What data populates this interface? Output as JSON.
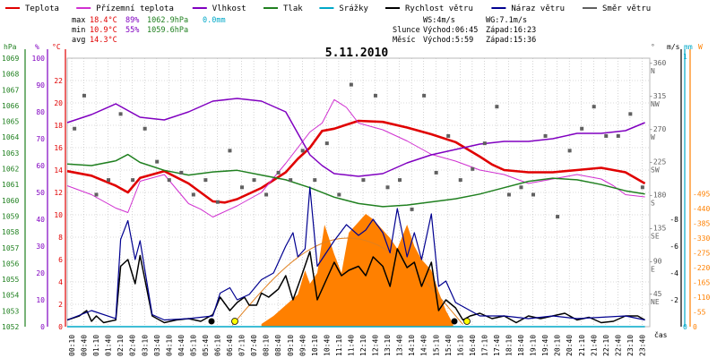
{
  "legend": [
    {
      "label": "Teplota",
      "color": "#e00000"
    },
    {
      "label": "Přízemní teplota",
      "color": "#d030d0"
    },
    {
      "label": "Vlhkost",
      "color": "#8000c0"
    },
    {
      "label": "Tlak",
      "color": "#208020"
    },
    {
      "label": "Srážky",
      "color": "#00a8c8"
    },
    {
      "label": "Rychlost větru",
      "color": "#000000"
    },
    {
      "label": "Náraz větru",
      "color": "#000090"
    },
    {
      "label": "Směr větru",
      "color": "#606060"
    }
  ],
  "stats": {
    "max_label": "max",
    "min_label": "min",
    "avg_label": "avg",
    "max_temp": "18.4°C",
    "max_hum": "89%",
    "max_press": "1062.9hPa",
    "max_rain": "0.0mm",
    "min_temp": "10.9°C",
    "min_hum": "55%",
    "min_press": "1059.6hPa",
    "avg_temp": "14.3°C"
  },
  "info": {
    "ws": "WS:4m/s",
    "wg": "WG:7.1m/s",
    "sun_label": "Slunce",
    "sun_rise": "Východ:06:45",
    "sun_set": "Západ:16:23",
    "moon_label": "Měsíc",
    "moon_rise": "Východ:5:59",
    "moon_set": "Západ:15:36"
  },
  "title": "5.11.2010",
  "axis_units": {
    "hpa": "hPa",
    "pct": "%",
    "deg": "°C",
    "deg2": "°",
    "ms": "m/s",
    "mm": "mm",
    "w": "W"
  },
  "xlabel": "čas",
  "colors": {
    "temp": "#e00000",
    "ground": "#d030d0",
    "hum": "#8000c0",
    "press": "#208020",
    "wind": "#000000",
    "gust": "#000090",
    "dir": "#606060",
    "solar": "#ff8000",
    "solar_line": "#e08020",
    "rain": "#00a8c8",
    "grid": "#b8b8b8"
  },
  "chart_data": {
    "type": "line",
    "title": "5.11.2010",
    "x_ticks": [
      "00:10",
      "00:40",
      "01:10",
      "01:40",
      "02:10",
      "02:40",
      "03:10",
      "03:40",
      "04:10",
      "04:40",
      "05:10",
      "05:40",
      "06:10",
      "06:40",
      "07:10",
      "07:40",
      "08:10",
      "08:40",
      "09:10",
      "09:40",
      "10:10",
      "10:40",
      "11:10",
      "11:40",
      "12:10",
      "12:40",
      "13:10",
      "13:40",
      "14:10",
      "14:40",
      "15:10",
      "15:40",
      "16:10",
      "16:40",
      "17:10",
      "17:40",
      "18:10",
      "18:40",
      "19:10",
      "19:40",
      "20:10",
      "20:40",
      "21:10",
      "21:40",
      "22:10",
      "22:40",
      "23:10",
      "23:40"
    ],
    "axes": {
      "pressure_hpa": {
        "min": 1052,
        "max": 1069,
        "ticks": [
          1052,
          1053,
          1054,
          1055,
          1056,
          1057,
          1058,
          1059,
          1060,
          1061,
          1062,
          1063,
          1064,
          1065,
          1066,
          1067,
          1068,
          1069
        ]
      },
      "humidity_pct": {
        "min": 0,
        "max": 100,
        "ticks": [
          0,
          10,
          20,
          30,
          40,
          50,
          60,
          70,
          80,
          90,
          100
        ]
      },
      "temperature_c": {
        "min": 0,
        "max": 24,
        "ticks": [
          0,
          2,
          4,
          6,
          8,
          10,
          12,
          14,
          16,
          18,
          20,
          22
        ]
      },
      "wind_dir_deg": {
        "ticks": [
          {
            "v": 360,
            "l": "N"
          },
          {
            "v": 315,
            "l": "NW"
          },
          {
            "v": 270,
            "l": "W"
          },
          {
            "v": 225,
            "l": "SW"
          },
          {
            "v": 180,
            "l": "S"
          },
          {
            "v": 135,
            "l": "SE"
          },
          {
            "v": 90,
            "l": "E"
          },
          {
            "v": 45,
            "l": "NE"
          },
          {
            "v": 0,
            "l": ""
          }
        ]
      },
      "wind_ms": {
        "min": 0,
        "max": 12,
        "ticks": [
          0,
          2,
          4,
          6,
          8
        ]
      },
      "rain_mm": {
        "ticks": [
          1,
          0
        ]
      },
      "solar_w": {
        "min": 0,
        "max": 550,
        "ticks": [
          0,
          55,
          110,
          165,
          220,
          275,
          330,
          385,
          440,
          495
        ]
      }
    },
    "series": [
      {
        "name": "Teplota",
        "unit": "°C",
        "x": [
          0,
          1,
          2,
          2.5,
          3,
          4,
          5,
          6,
          6.5,
          7,
          8,
          9,
          9.5,
          10,
          10.5,
          11,
          12,
          13,
          14,
          15,
          16,
          17,
          17.5,
          18,
          19,
          20,
          21,
          22,
          23,
          23.8
        ],
        "y": [
          13.9,
          13.5,
          12.6,
          12,
          13.3,
          13.9,
          12.8,
          11.2,
          11.1,
          11.4,
          12.4,
          13.8,
          15,
          16,
          17.5,
          17.7,
          18.4,
          18.3,
          17.8,
          17.2,
          16.5,
          15.2,
          14.5,
          14,
          13.8,
          13.8,
          14.0,
          14.2,
          13.8,
          12.8
        ]
      },
      {
        "name": "Přízemní teplota",
        "unit": "°C",
        "x": [
          0,
          1,
          2,
          2.5,
          3,
          4,
          5,
          5.5,
          6,
          7,
          8,
          9,
          9.5,
          10,
          10.5,
          11,
          11.5,
          12,
          13,
          14,
          15,
          16,
          17,
          18,
          19,
          20,
          21,
          22,
          22.5,
          23,
          23.8
        ],
        "y": [
          12.6,
          11.8,
          10.6,
          10.2,
          13.0,
          13.6,
          11.0,
          10.5,
          9.8,
          10.8,
          12.0,
          14.6,
          16,
          17.4,
          18.2,
          20.3,
          19.6,
          18.2,
          17.6,
          16.6,
          15.4,
          14.8,
          14.0,
          13.6,
          12.8,
          13.2,
          13.6,
          13.2,
          12.6,
          11.8,
          11.6
        ]
      },
      {
        "name": "Vlhkost",
        "unit": "%",
        "x": [
          0,
          1,
          2,
          3,
          4,
          5,
          6,
          7,
          8,
          9,
          9.5,
          10,
          10.5,
          11,
          12,
          13,
          14,
          15,
          16,
          17,
          18,
          19,
          20,
          21,
          22,
          23,
          23.8
        ],
        "y": [
          76,
          79,
          83,
          78,
          77,
          80,
          84,
          85,
          84,
          80,
          72,
          64,
          60,
          57,
          56,
          57,
          61,
          64,
          66,
          68,
          69,
          69,
          70,
          72,
          72,
          73,
          76
        ]
      },
      {
        "name": "Tlak",
        "unit": "hPa",
        "x": [
          0,
          1,
          2,
          2.5,
          3,
          4,
          5,
          6,
          7,
          8,
          9,
          10,
          11,
          12,
          13,
          14,
          15,
          16,
          17,
          18,
          19,
          20,
          21,
          22,
          23,
          23.8
        ],
        "y": [
          1062.3,
          1062.2,
          1062.5,
          1062.9,
          1062.4,
          1061.9,
          1061.6,
          1061.8,
          1061.9,
          1061.6,
          1061.3,
          1060.8,
          1060.2,
          1059.8,
          1059.6,
          1059.7,
          1059.9,
          1060.1,
          1060.4,
          1060.8,
          1061.2,
          1061.4,
          1061.3,
          1061.0,
          1060.6,
          1060.4
        ]
      },
      {
        "name": "Srážky",
        "unit": "mm",
        "x": [
          0,
          23.8
        ],
        "y": [
          0,
          0
        ]
      },
      {
        "name": "Rychlost větru",
        "unit": "m/s",
        "x": [
          0,
          0.5,
          0.8,
          1,
          1.2,
          1.5,
          2,
          2.2,
          2.5,
          2.8,
          3,
          3.5,
          4,
          4.5,
          5,
          5.5,
          6,
          6.3,
          6.7,
          7,
          7.3,
          7.5,
          7.8,
          8,
          8.3,
          8.7,
          9,
          9.3,
          9.6,
          10,
          10.3,
          10.6,
          11,
          11.3,
          11.6,
          12,
          12.3,
          12.6,
          13,
          13.3,
          13.6,
          14,
          14.3,
          14.6,
          15,
          15.3,
          15.6,
          16,
          16.3,
          16.6,
          17,
          17.5,
          18,
          18.5,
          19,
          19.5,
          20,
          20.5,
          21,
          21.5,
          22,
          22.5,
          23,
          23.5,
          23.8
        ],
        "y": [
          0.5,
          0.8,
          1.2,
          0.4,
          0.8,
          0.3,
          0.5,
          4.5,
          5.0,
          3.2,
          5.3,
          0.8,
          0.3,
          0.5,
          0.6,
          0.4,
          0.9,
          2.2,
          1.2,
          1.8,
          2.2,
          1.6,
          1.6,
          2.5,
          2.2,
          2.8,
          3.8,
          2.0,
          3.5,
          5.6,
          2.0,
          3.2,
          4.8,
          3.8,
          4.2,
          4.5,
          3.8,
          5.2,
          4.5,
          3.0,
          5.8,
          4.4,
          4.8,
          3.0,
          4.8,
          1.2,
          2.0,
          1.4,
          0.5,
          0.8,
          1.0,
          0.6,
          0.8,
          0.3,
          0.8,
          0.6,
          0.8,
          1.0,
          0.5,
          0.7,
          0.3,
          0.4,
          0.8,
          0.8,
          0.5
        ]
      },
      {
        "name": "Náraz větru",
        "unit": "m/s",
        "x": [
          0,
          1,
          2,
          2.2,
          2.5,
          2.8,
          3,
          3.5,
          4,
          5,
          6,
          6.3,
          6.7,
          7,
          7.5,
          8,
          8.5,
          9,
          9.3,
          9.5,
          9.8,
          10,
          10.3,
          11,
          11.5,
          12,
          12.3,
          12.6,
          13,
          13.3,
          13.6,
          14,
          14.3,
          14.6,
          15,
          15.3,
          15.6,
          16,
          17,
          18,
          19,
          20,
          21,
          22,
          23,
          23.8
        ],
        "y": [
          0.5,
          1.2,
          0.6,
          6.5,
          7.9,
          5.0,
          6.4,
          0.9,
          0.5,
          0.6,
          0.8,
          2.5,
          2.9,
          2.0,
          2.4,
          3.5,
          4.0,
          6.0,
          7.0,
          5.2,
          5.8,
          10.4,
          4.5,
          6.4,
          7.6,
          6.8,
          7.2,
          8.0,
          7.0,
          5.5,
          8.8,
          5.2,
          7.0,
          5.0,
          8.4,
          3.0,
          3.4,
          1.8,
          0.8,
          0.8,
          0.6,
          0.8,
          0.6,
          0.7,
          0.8,
          0.5
        ]
      },
      {
        "name": "Směr větru",
        "unit": "°",
        "x": [
          0.3,
          0.7,
          1.2,
          1.7,
          2.2,
          2.7,
          3.2,
          3.7,
          4.2,
          4.7,
          5.2,
          5.7,
          6.2,
          6.7,
          7.2,
          7.7,
          8.2,
          8.7,
          9.2,
          9.7,
          10.2,
          10.7,
          11.2,
          11.7,
          12.2,
          12.7,
          13.2,
          13.7,
          14.2,
          14.7,
          15.2,
          15.7,
          16.2,
          16.7,
          17.2,
          17.7,
          18.2,
          18.7,
          19.2,
          19.7,
          20.2,
          20.7,
          21.2,
          21.7,
          22.2,
          22.7,
          23.2,
          23.7
        ],
        "y": [
          270,
          315,
          180,
          200,
          290,
          200,
          270,
          225,
          200,
          210,
          180,
          200,
          170,
          240,
          190,
          200,
          180,
          210,
          200,
          240,
          200,
          250,
          180,
          330,
          200,
          315,
          190,
          200,
          160,
          315,
          210,
          260,
          200,
          215,
          250,
          300,
          180,
          190,
          180,
          260,
          150,
          240,
          270,
          300,
          260,
          260,
          290,
          190
        ]
      },
      {
        "name": "Sluneční záření",
        "unit": "W",
        "x": [
          8.0,
          8.5,
          9,
          9.5,
          9.8,
          10,
          10.3,
          10.6,
          11,
          11.3,
          11.6,
          12,
          12.3,
          12.6,
          13,
          13.3,
          13.6,
          14,
          14.3,
          14.6,
          15,
          15.3,
          15.6,
          15.9
        ],
        "y": [
          10,
          40,
          80,
          120,
          210,
          160,
          200,
          380,
          270,
          200,
          350,
          390,
          420,
          400,
          360,
          330,
          290,
          380,
          300,
          250,
          210,
          130,
          60,
          10
        ]
      }
    ]
  }
}
